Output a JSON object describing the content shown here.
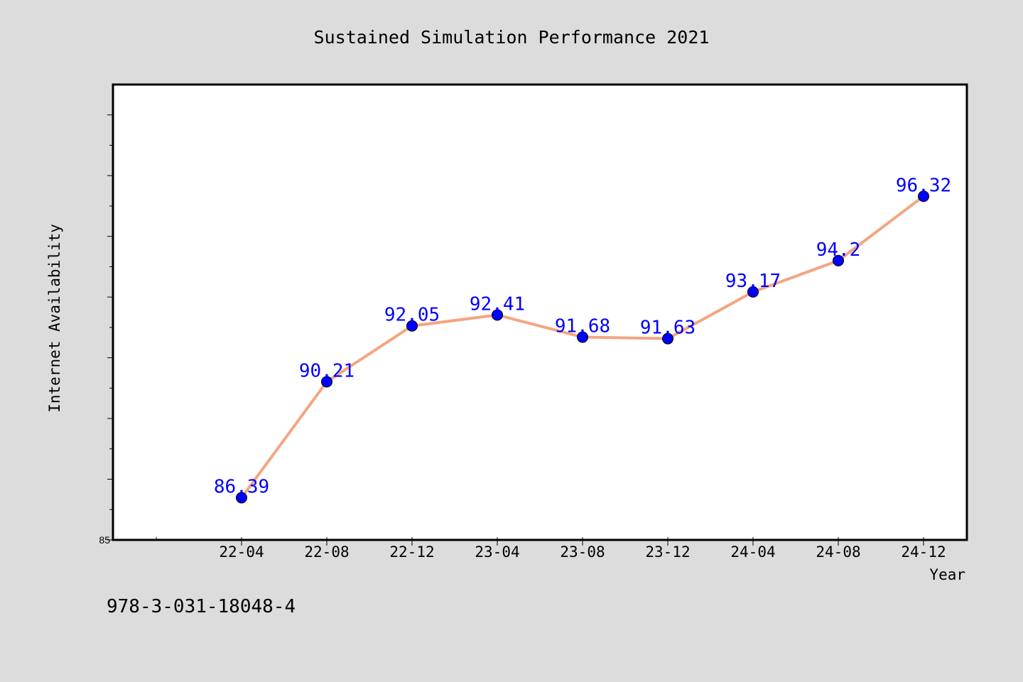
{
  "chart_data": {
    "type": "line",
    "title": "Sustained Simulation Performance 2021",
    "xlabel": "Year",
    "ylabel": "Internet Availability",
    "categories": [
      "22-04",
      "22-08",
      "22-12",
      "23-04",
      "23-08",
      "23-12",
      "24-04",
      "24-08",
      "24-12"
    ],
    "series": [
      {
        "values": [
          86.39,
          90.21,
          92.05,
          92.41,
          91.68,
          91.63,
          93.17,
          94.2,
          96.32
        ],
        "data_labels": [
          "86.39",
          "90.21",
          "92.05",
          "92.41",
          "91.68",
          "91.63",
          "93.17",
          "94.2",
          "96.32"
        ]
      }
    ],
    "ylim": [
      85,
      100
    ],
    "ytick_labels": [
      "85"
    ],
    "grid": false,
    "colors": {
      "line": "#f4a582",
      "marker": "#0000ff",
      "data_label": "#0000ff",
      "background": "#dcdcdc",
      "plot_area": "#ffffff"
    }
  },
  "footer": {
    "text": "978-3-031-18048-4"
  }
}
